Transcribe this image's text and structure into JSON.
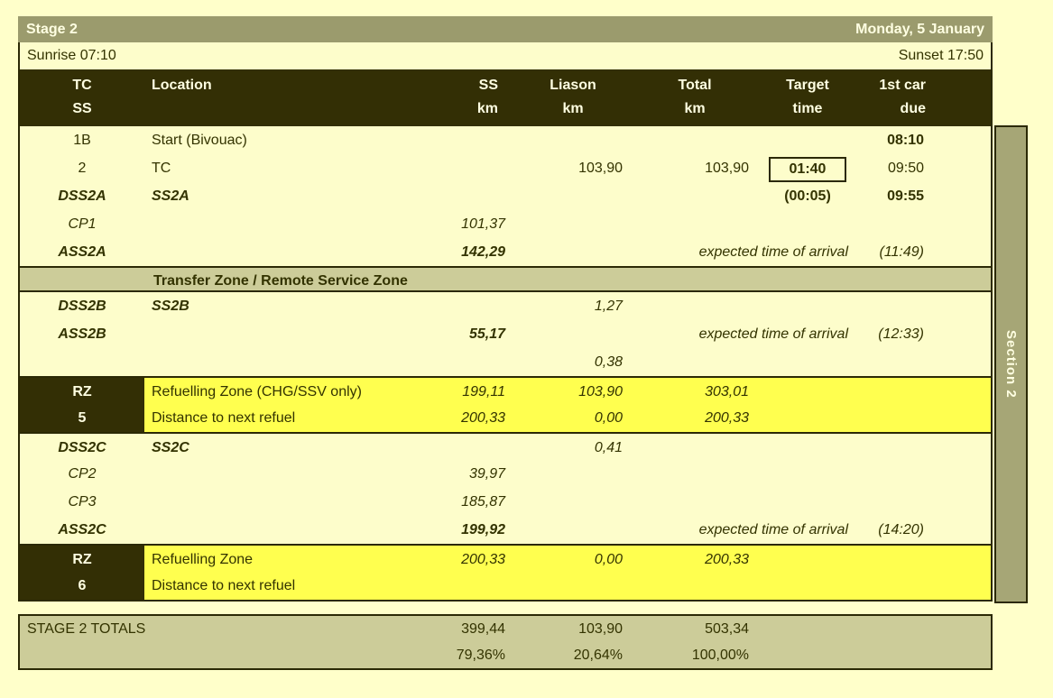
{
  "title_bar": {
    "stage": "Stage 2",
    "date": "Monday, 5 January"
  },
  "sun_row": {
    "sunrise": "Sunrise 07:10",
    "sunset": "Sunset 17:50"
  },
  "header": {
    "cols": [
      {
        "l1": "TC",
        "l2": "SS"
      },
      {
        "l1": "Location",
        "l2": ""
      },
      {
        "l1": "SS",
        "l2": "km"
      },
      {
        "l1": "Liason",
        "l2": "km"
      },
      {
        "l1": "Total",
        "l2": "km"
      },
      {
        "l1": "Target",
        "l2": "time"
      },
      {
        "l1": "1st car",
        "l2": "due"
      }
    ]
  },
  "rows": [
    {
      "type": "plain",
      "tc": "1B",
      "loc": "Start (Bivouac)",
      "due": "08:10",
      "dues": "b"
    },
    {
      "type": "plain",
      "tc": "2",
      "loc": "TC",
      "li": "103,90",
      "to": "103,90",
      "tg": "01:40",
      "tgs": "box",
      "due": "09:50"
    },
    {
      "type": "plain",
      "tc": "DSS2A",
      "tcs": "bi",
      "loc": "SS2A",
      "locs": "bi",
      "tg": "(00:05)",
      "tgs": "b",
      "due": "09:55",
      "dues": "b"
    },
    {
      "type": "plain",
      "tc": "CP1",
      "tcs": "i",
      "ss": "101,37",
      "sss": "i"
    },
    {
      "type": "plain",
      "tc": "ASS2A",
      "tcs": "bi",
      "ss": "142,29",
      "sss": "bi",
      "eta": "expected time of arrival",
      "due": "(11:49)",
      "dues": "i"
    },
    {
      "type": "band",
      "loc": "Transfer Zone / Remote Service Zone"
    },
    {
      "type": "plain",
      "tc": "DSS2B",
      "tcs": "bi",
      "loc": "SS2B",
      "locs": "bi",
      "li": "1,27",
      "lis": "i"
    },
    {
      "type": "plain",
      "tc": "ASS2B",
      "tcs": "bi",
      "ss": "55,17",
      "sss": "bi",
      "eta": "expected time of arrival",
      "due": "(12:33)",
      "dues": "i"
    },
    {
      "type": "plain",
      "li": "0,38",
      "lis": "i"
    },
    {
      "type": "rz-first",
      "tc": "RZ",
      "loc": "Refuelling Zone (CHG/SSV only)",
      "ss": "199,11",
      "sss": "i",
      "li": "103,90",
      "lis": "i",
      "to": "303,01",
      "tos": "i"
    },
    {
      "type": "rz-last",
      "tc": "5",
      "loc": "Distance to next refuel",
      "ss": "200,33",
      "sss": "i",
      "li": "0,00",
      "lis": "i",
      "to": "200,33",
      "tos": "i"
    },
    {
      "type": "plain",
      "bt": true,
      "tc": "DSS2C",
      "tcs": "bi",
      "loc": "SS2C",
      "locs": "bi",
      "li": "0,41",
      "lis": "i"
    },
    {
      "type": "plain",
      "tc": "CP2",
      "tcs": "i",
      "ss": "39,97",
      "sss": "i"
    },
    {
      "type": "plain",
      "tc": "CP3",
      "tcs": "i",
      "ss": "185,87",
      "sss": "i"
    },
    {
      "type": "plain",
      "tc": "ASS2C",
      "tcs": "bi",
      "ss": "199,92",
      "sss": "bi",
      "eta": "expected time of arrival",
      "due": "(14:20)",
      "dues": "i"
    },
    {
      "type": "rz-first",
      "tc": "RZ",
      "loc": "Refuelling Zone",
      "ss": "200,33",
      "sss": "i",
      "li": "0,00",
      "lis": "i",
      "to": "200,33",
      "tos": "i"
    },
    {
      "type": "rz-last",
      "tc": "6",
      "loc": "Distance to next refuel"
    }
  ],
  "totals": {
    "label": "STAGE 2 TOTALS",
    "row1": {
      "ss": "399,44",
      "liason": "103,90",
      "total": "503,34"
    },
    "row2": {
      "ss": "79,36%",
      "liason": "20,64%",
      "total": "100,00%"
    }
  },
  "sidebar": {
    "label": "Section 2"
  },
  "colors": {
    "page_bg": "#FFFFCA",
    "title_bar_bg": "#9B9B6D",
    "header_bg": "#332F05",
    "body_bg": "#FDFDCB",
    "refuel_yellow": "#FFFF4F",
    "band_beige": "#CCCC99",
    "sidebar_olive": "#A6A676",
    "border_dark": "#2B2905",
    "text_dark": "#333300",
    "text_cream": "#FFFFE2"
  }
}
